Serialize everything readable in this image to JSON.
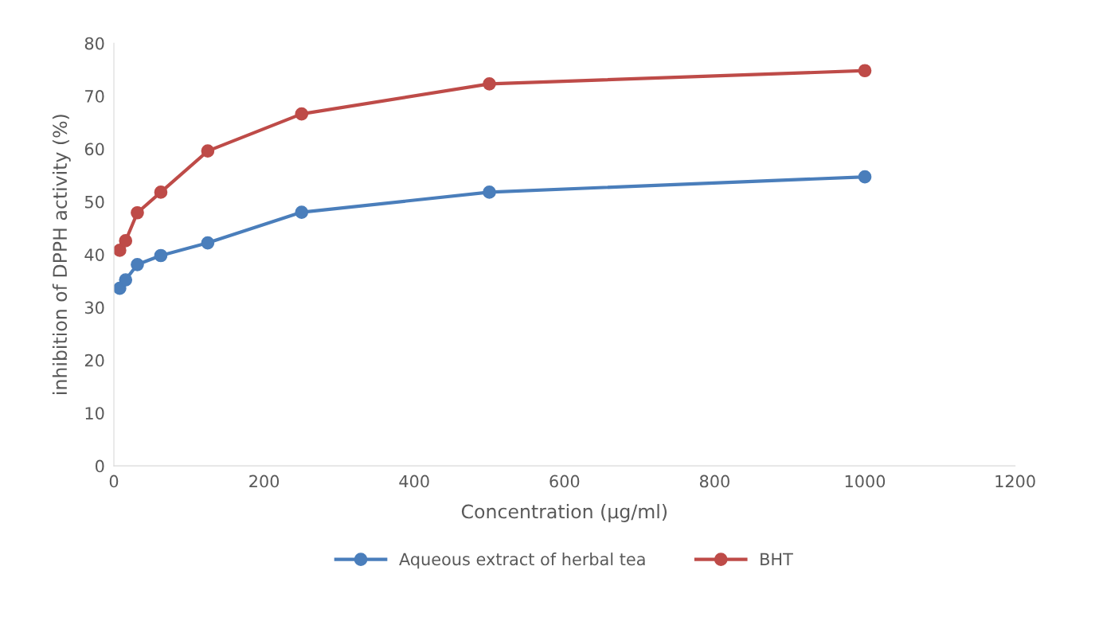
{
  "chart_data": {
    "type": "line",
    "xlabel": "Concentration (µg/ml)",
    "ylabel": "inhibition of DPPH activity (%)",
    "x": [
      7.8,
      15.6,
      31.25,
      62.5,
      125,
      250,
      500,
      1000
    ],
    "series": [
      {
        "name": "Aqueous extract of herbal tea",
        "color": "#4a7ebb",
        "values": [
          33.6,
          35.2,
          38.1,
          39.8,
          42.2,
          48.0,
          51.8,
          54.7
        ]
      },
      {
        "name": "BHT",
        "color": "#be4b48",
        "values": [
          40.8,
          42.6,
          47.9,
          51.8,
          59.6,
          66.6,
          72.3,
          74.8
        ]
      }
    ],
    "xlim": [
      0,
      1200
    ],
    "xticks": [
      0,
      200,
      400,
      600,
      800,
      1000,
      1200
    ],
    "ylim": [
      0,
      80
    ],
    "yticks": [
      0,
      10,
      20,
      30,
      40,
      50,
      60,
      70,
      80
    ],
    "grid": false,
    "legend": "bottom",
    "marker": "circle",
    "line_style": "solid"
  }
}
